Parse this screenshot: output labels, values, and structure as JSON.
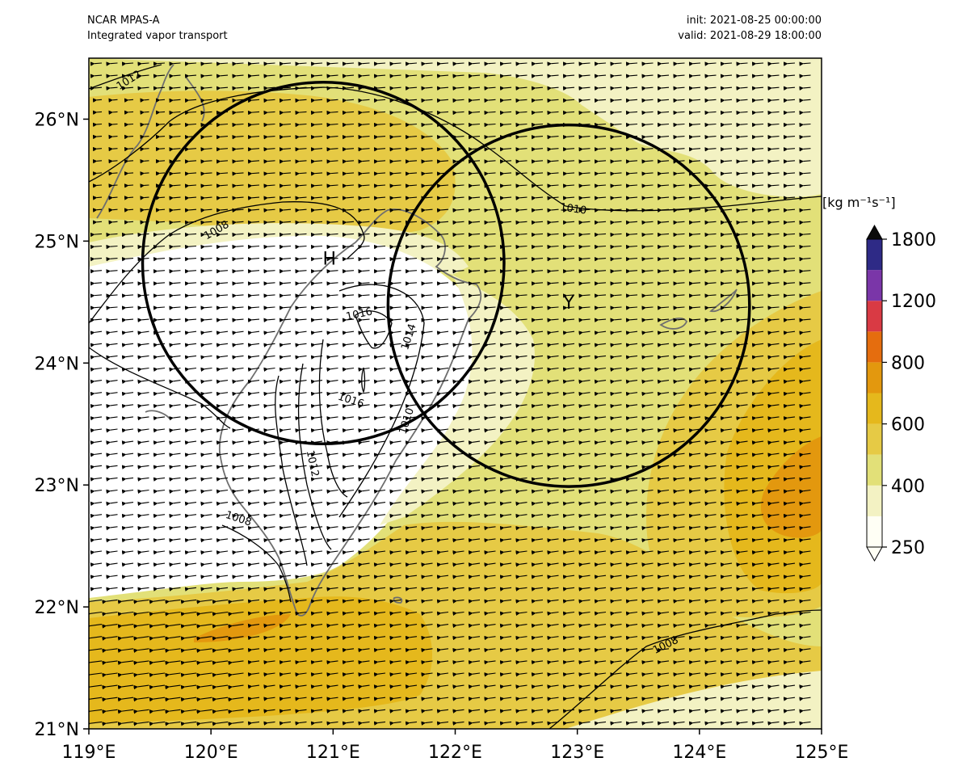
{
  "header": {
    "model": "NCAR MPAS-A",
    "field": "Integrated vapor transport",
    "init": "init: 2021-08-25 00:00:00",
    "valid": "valid: 2021-08-29 18:00:00"
  },
  "map": {
    "lon_range": [
      119,
      125
    ],
    "lat_range": [
      21,
      26.5
    ],
    "x_ticks": [
      "119°E",
      "120°E",
      "121°E",
      "122°E",
      "123°E",
      "124°E",
      "125°E"
    ],
    "y_ticks": [
      "21°N",
      "22°N",
      "23°N",
      "24°N",
      "25°N",
      "26°N"
    ],
    "vector_direction": "westward",
    "markers": [
      {
        "label": "H",
        "lon": 120.97,
        "lat": 24.86
      },
      {
        "label": "Y",
        "lon": 122.93,
        "lat": 24.5
      }
    ],
    "circles": [
      {
        "center_lon": 120.92,
        "center_lat": 24.82,
        "radius_deg": 1.48
      },
      {
        "center_lon": 122.93,
        "center_lat": 24.47,
        "radius_deg": 1.48
      }
    ],
    "isobar_labels": [
      "1012",
      "1010",
      "1008",
      "1016",
      "1014",
      "1016",
      "1010",
      "1012",
      "1008",
      "1008"
    ]
  },
  "colorbar": {
    "unit": "[kg m⁻¹s⁻¹]",
    "tick_labels": [
      "250",
      "400",
      "600",
      "800",
      "1200",
      "1800"
    ],
    "colors": [
      "#fffff5",
      "#f3f2c3",
      "#e2e078",
      "#e6ca45",
      "#e5b81c",
      "#e3980e",
      "#e56d0e",
      "#d93a44",
      "#7a36a8",
      "#2e2a86",
      "#0b0b0b"
    ]
  }
}
